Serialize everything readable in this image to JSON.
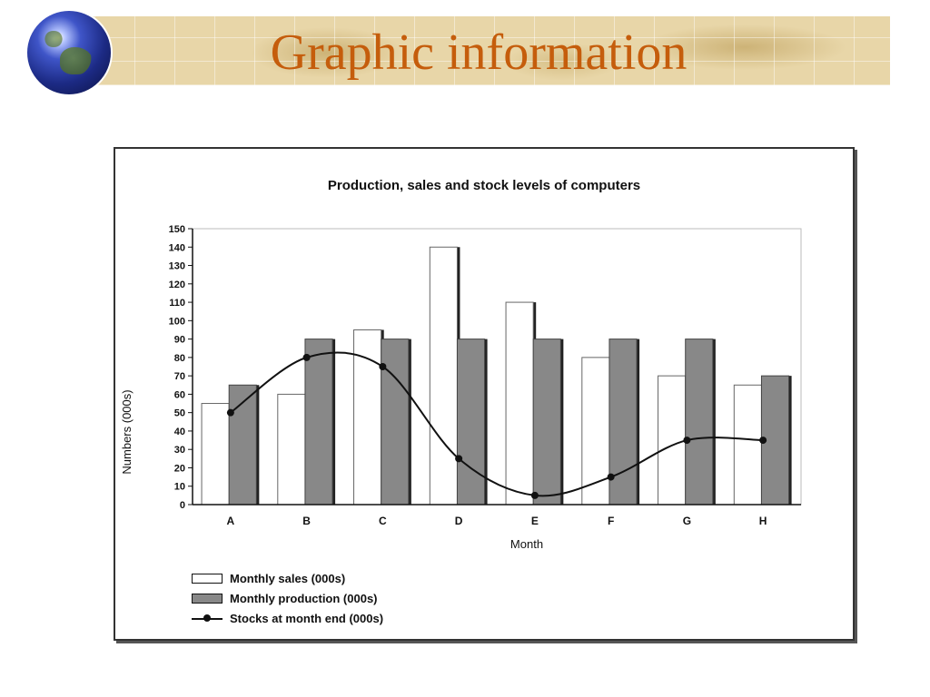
{
  "slide": {
    "title": "Graphic information"
  },
  "chart_data": {
    "type": "bar",
    "title": "Production, sales and stock levels of computers",
    "xlabel": "Month",
    "ylabel": "Numbers (000s)",
    "categories": [
      "A",
      "B",
      "C",
      "D",
      "E",
      "F",
      "G",
      "H"
    ],
    "ylim": [
      0,
      150
    ],
    "yticks": [
      0,
      10,
      20,
      30,
      40,
      50,
      60,
      70,
      80,
      90,
      100,
      110,
      120,
      130,
      140,
      150
    ],
    "grid": false,
    "legend_position": "bottom-left",
    "series": [
      {
        "name": "Monthly sales (000s)",
        "type": "bar",
        "color": "#ffffff",
        "values": [
          55,
          60,
          95,
          140,
          110,
          80,
          70,
          65
        ]
      },
      {
        "name": "Monthly production (000s)",
        "type": "bar",
        "color": "#888888",
        "values": [
          65,
          90,
          90,
          90,
          90,
          90,
          90,
          70
        ]
      },
      {
        "name": "Stocks at month end (000s)",
        "type": "line",
        "color": "#111111",
        "values": [
          50,
          80,
          75,
          25,
          5,
          15,
          35,
          35
        ]
      }
    ]
  }
}
